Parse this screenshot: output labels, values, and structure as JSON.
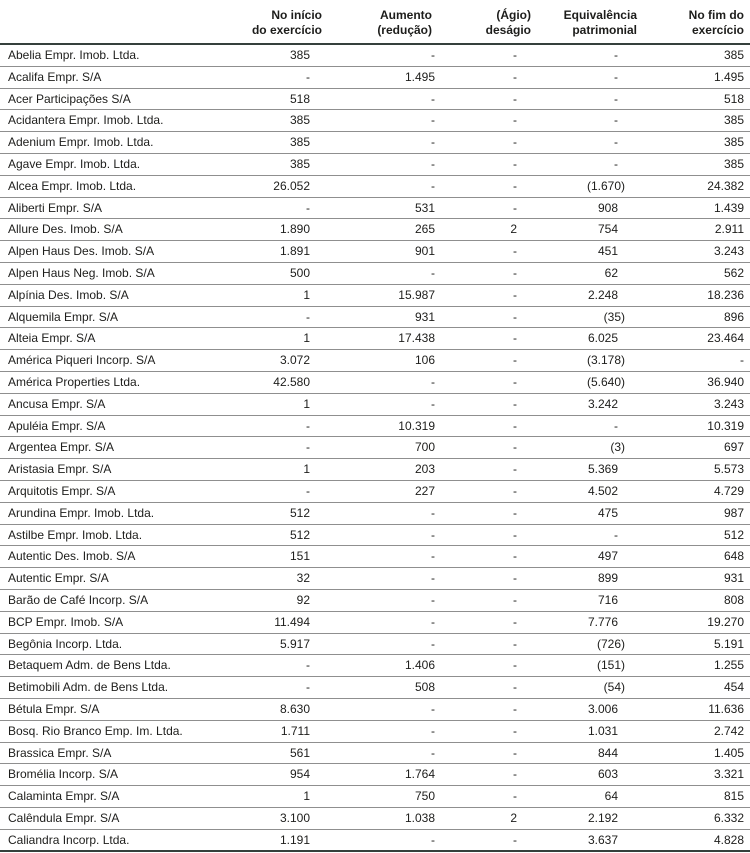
{
  "table": {
    "headers": [
      {
        "line1": "No início",
        "line2": "do exercício"
      },
      {
        "line1": "Aumento",
        "line2": "(redução)"
      },
      {
        "line1": "(Ágio)",
        "line2": "deságio"
      },
      {
        "line1": "Equivalência",
        "line2": "patrimonial"
      },
      {
        "line1": "No fim do",
        "line2": "exercício"
      }
    ],
    "rows": [
      {
        "name": "Abelia Empr. Imob. Ltda.",
        "values": [
          "385",
          "-",
          "-",
          "-",
          "385"
        ]
      },
      {
        "name": "Acalifa Empr. S/A",
        "values": [
          "-",
          "1.495",
          "-",
          "-",
          "1.495"
        ]
      },
      {
        "name": "Acer Participações S/A",
        "values": [
          "518",
          "-",
          "-",
          "-",
          "518"
        ]
      },
      {
        "name": "Acidantera Empr. Imob. Ltda.",
        "values": [
          "385",
          "-",
          "-",
          "-",
          "385"
        ]
      },
      {
        "name": "Adenium Empr. Imob. Ltda.",
        "values": [
          "385",
          "-",
          "-",
          "-",
          "385"
        ]
      },
      {
        "name": "Agave Empr. Imob. Ltda.",
        "values": [
          "385",
          "-",
          "-",
          "-",
          "385"
        ]
      },
      {
        "name": "Alcea Empr. Imob. Ltda.",
        "values": [
          "26.052",
          "-",
          "-",
          "(1.670)",
          "24.382"
        ]
      },
      {
        "name": "Aliberti Empr. S/A",
        "values": [
          "-",
          "531",
          "-",
          "908",
          "1.439"
        ]
      },
      {
        "name": "Allure Des. Imob. S/A",
        "values": [
          "1.890",
          "265",
          "2",
          "754",
          "2.911"
        ]
      },
      {
        "name": "Alpen Haus Des. Imob. S/A",
        "values": [
          "1.891",
          "901",
          "-",
          "451",
          "3.243"
        ]
      },
      {
        "name": "Alpen Haus Neg. Imob. S/A",
        "values": [
          "500",
          "-",
          "-",
          "62",
          "562"
        ]
      },
      {
        "name": "Alpínia Des. Imob. S/A",
        "values": [
          "1",
          "15.987",
          "-",
          "2.248",
          "18.236"
        ]
      },
      {
        "name": "Alquemila Empr. S/A",
        "values": [
          "-",
          "931",
          "-",
          "(35)",
          "896"
        ]
      },
      {
        "name": "Alteia Empr. S/A",
        "values": [
          "1",
          "17.438",
          "-",
          "6.025",
          "23.464"
        ]
      },
      {
        "name": "América Piqueri Incorp. S/A",
        "values": [
          "3.072",
          "106",
          "-",
          "(3.178)",
          "-"
        ]
      },
      {
        "name": "América Properties Ltda.",
        "values": [
          "42.580",
          "-",
          "-",
          "(5.640)",
          "36.940"
        ]
      },
      {
        "name": "Ancusa Empr. S/A",
        "values": [
          "1",
          "-",
          "-",
          "3.242",
          "3.243"
        ]
      },
      {
        "name": "Apuléia Empr. S/A",
        "values": [
          "-",
          "10.319",
          "-",
          "-",
          "10.319"
        ]
      },
      {
        "name": "Argentea Empr. S/A",
        "values": [
          "-",
          "700",
          "-",
          "(3)",
          "697"
        ]
      },
      {
        "name": "Aristasia Empr. S/A",
        "values": [
          "1",
          "203",
          "-",
          "5.369",
          "5.573"
        ]
      },
      {
        "name": "Arquitotis Empr. S/A",
        "values": [
          "-",
          "227",
          "-",
          "4.502",
          "4.729"
        ]
      },
      {
        "name": "Arundina Empr. Imob. Ltda.",
        "values": [
          "512",
          "-",
          "-",
          "475",
          "987"
        ]
      },
      {
        "name": "Astilbe Empr. Imob. Ltda.",
        "values": [
          "512",
          "-",
          "-",
          "-",
          "512"
        ]
      },
      {
        "name": "Autentic Des. Imob. S/A",
        "values": [
          "151",
          "-",
          "-",
          "497",
          "648"
        ]
      },
      {
        "name": "Autentic Empr. S/A",
        "values": [
          "32",
          "-",
          "-",
          "899",
          "931"
        ]
      },
      {
        "name": "Barão de Café Incorp. S/A",
        "values": [
          "92",
          "-",
          "-",
          "716",
          "808"
        ]
      },
      {
        "name": "BCP Empr. Imob. S/A",
        "values": [
          "11.494",
          "-",
          "-",
          "7.776",
          "19.270"
        ]
      },
      {
        "name": "Begônia Incorp. Ltda.",
        "values": [
          "5.917",
          "-",
          "-",
          "(726)",
          "5.191"
        ]
      },
      {
        "name": "Betaquem Adm. de Bens Ltda.",
        "values": [
          "-",
          "1.406",
          "-",
          "(151)",
          "1.255"
        ]
      },
      {
        "name": "Betimobili Adm. de Bens Ltda.",
        "values": [
          "-",
          "508",
          "-",
          "(54)",
          "454"
        ]
      },
      {
        "name": "Bétula Empr. S/A",
        "values": [
          "8.630",
          "-",
          "-",
          "3.006",
          "11.636"
        ]
      },
      {
        "name": "Bosq. Rio Branco Emp. Im. Ltda.",
        "values": [
          "1.711",
          "-",
          "-",
          "1.031",
          "2.742"
        ]
      },
      {
        "name": "Brassica Empr. S/A",
        "values": [
          "561",
          "-",
          "-",
          "844",
          "1.405"
        ]
      },
      {
        "name": "Bromélia Incorp. S/A",
        "values": [
          "954",
          "1.764",
          "-",
          "603",
          "3.321"
        ]
      },
      {
        "name": "Calaminta Empr. S/A",
        "values": [
          "1",
          "750",
          "-",
          "64",
          "815"
        ]
      },
      {
        "name": "Calêndula Empr. S/A",
        "values": [
          "3.100",
          "1.038",
          "2",
          "2.192",
          "6.332"
        ]
      },
      {
        "name": "Caliandra Incorp. Ltda.",
        "values": [
          "1.191",
          "-",
          "-",
          "3.637",
          "4.828"
        ]
      }
    ]
  }
}
